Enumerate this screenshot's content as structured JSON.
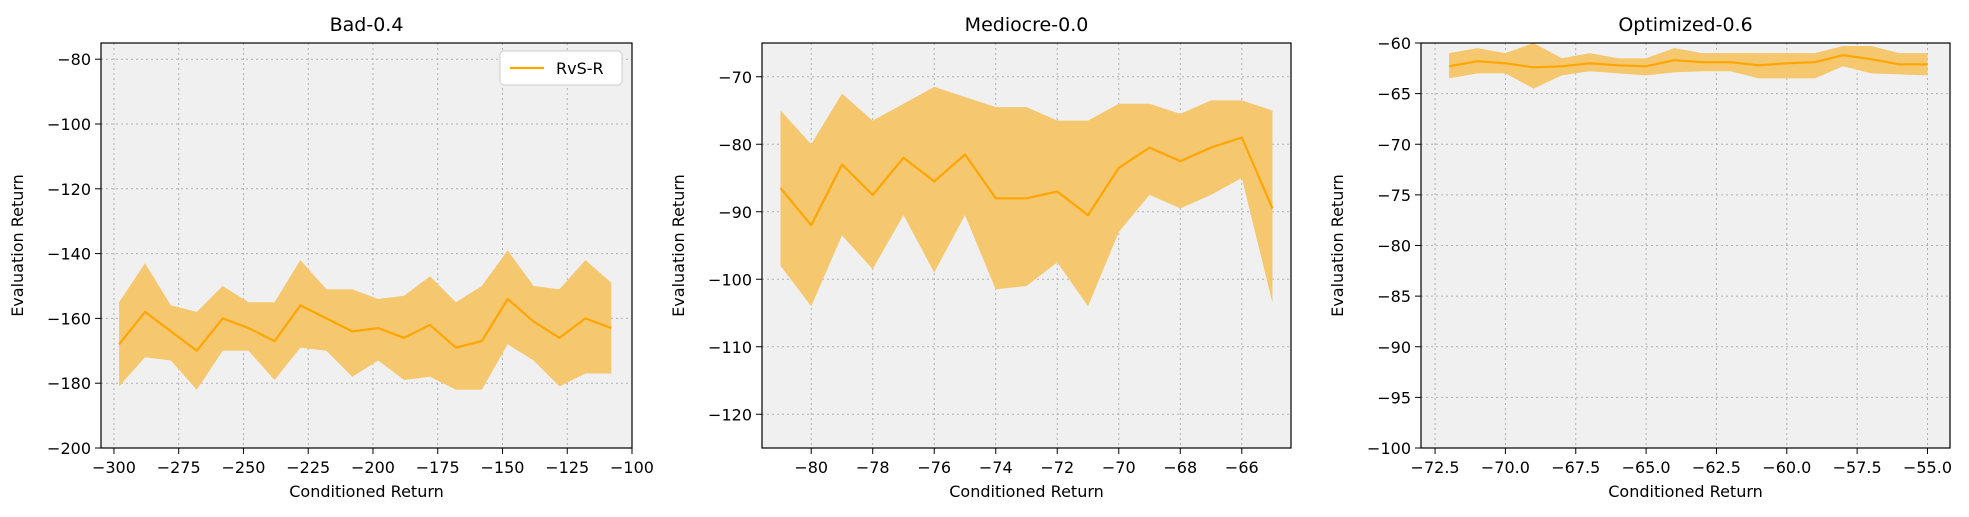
{
  "colors": {
    "line": "#ffa500",
    "band": "#f5c76f",
    "plot_bg": "#f0f0f0",
    "grid": "#b0b0b0"
  },
  "chart_data": [
    {
      "type": "line",
      "title": "Bad-0.4",
      "xlabel": "Conditioned Return",
      "ylabel": "Evaluation Return",
      "xlim": [
        -305,
        -100
      ],
      "ylim": [
        -200,
        -75
      ],
      "xticks": [
        -300,
        -275,
        -250,
        -225,
        -200,
        -175,
        -150,
        -125,
        -100
      ],
      "yticks": [
        -200,
        -180,
        -160,
        -140,
        -120,
        -100,
        -80
      ],
      "grid": true,
      "legend": {
        "position": "top-right",
        "entries": [
          "RvS-R"
        ]
      },
      "series": [
        {
          "name": "RvS-R",
          "x": [
            -298,
            -288,
            -278,
            -268,
            -258,
            -248,
            -238,
            -228,
            -218,
            -208,
            -198,
            -188,
            -178,
            -168,
            -158,
            -148,
            -138,
            -128,
            -118,
            -108
          ],
          "y": [
            -168,
            -158,
            -164,
            -170,
            -160,
            -163,
            -167,
            -156,
            -160,
            -164,
            -163,
            -166,
            -162,
            -169,
            -167,
            -154,
            -161,
            -166,
            -160,
            -163
          ],
          "upper": [
            -155,
            -143,
            -156,
            -158,
            -150,
            -155,
            -155,
            -142,
            -151,
            -151,
            -154,
            -153,
            -147,
            -155,
            -150,
            -139,
            -150,
            -151,
            -142,
            -149
          ],
          "lower": [
            -181,
            -172,
            -173,
            -182,
            -170,
            -170,
            -179,
            -169,
            -170,
            -178,
            -173,
            -179,
            -178,
            -182,
            -182,
            -168,
            -173,
            -181,
            -177,
            -177
          ]
        }
      ]
    },
    {
      "type": "line",
      "title": "Mediocre-0.0",
      "xlabel": "Conditioned Return",
      "ylabel": "Evaluation Return",
      "xlim": [
        -81.6,
        -64.4
      ],
      "ylim": [
        -125,
        -65
      ],
      "xticks": [
        -80,
        -78,
        -76,
        -74,
        -72,
        -70,
        -68,
        -66
      ],
      "yticks": [
        -120,
        -110,
        -100,
        -90,
        -80,
        -70
      ],
      "grid": true,
      "series": [
        {
          "name": "RvS-R",
          "x": [
            -81,
            -80,
            -79,
            -78,
            -77,
            -76,
            -75,
            -74,
            -73,
            -72,
            -71,
            -70,
            -69,
            -68,
            -67,
            -66,
            -65
          ],
          "y": [
            -86.5,
            -92,
            -83,
            -87.5,
            -82,
            -85.5,
            -81.5,
            -88,
            -88,
            -87,
            -90.5,
            -83.5,
            -80.5,
            -82.5,
            -80.5,
            -79,
            -89.5
          ],
          "upper": [
            -75,
            -80,
            -72.5,
            -76.5,
            -74,
            -71.5,
            -73,
            -74.5,
            -74.5,
            -76.5,
            -76.5,
            -74,
            -74,
            -75.5,
            -73.5,
            -73.5,
            -75
          ],
          "lower": [
            -98,
            -104,
            -93.5,
            -98.5,
            -90.5,
            -99,
            -90.5,
            -101.5,
            -101,
            -97.5,
            -104,
            -93,
            -87.5,
            -89.5,
            -87.5,
            -85,
            -103.5
          ]
        }
      ]
    },
    {
      "type": "line",
      "title": "Optimized-0.6",
      "xlabel": "Conditioned Return",
      "ylabel": "Evaluation Return",
      "xlim": [
        -73,
        -54.2
      ],
      "ylim": [
        -100,
        -60
      ],
      "xticks": [
        -72.5,
        -70.0,
        -67.5,
        -65.0,
        -62.5,
        -60.0,
        -57.5,
        -55.0
      ],
      "yticks": [
        -100,
        -95,
        -90,
        -85,
        -80,
        -75,
        -70,
        -65,
        -60
      ],
      "grid": true,
      "series": [
        {
          "name": "RvS-R",
          "x": [
            -72,
            -71,
            -70,
            -69,
            -68,
            -67,
            -66,
            -65,
            -64,
            -63,
            -62,
            -61,
            -60,
            -59,
            -58,
            -57,
            -56,
            -55
          ],
          "y": [
            -62.3,
            -61.8,
            -62,
            -62.4,
            -62.3,
            -62,
            -62.2,
            -62.3,
            -61.7,
            -61.9,
            -61.9,
            -62.2,
            -62.0,
            -61.9,
            -61.2,
            -61.6,
            -62.1,
            -62.1
          ],
          "upper": [
            -61,
            -60.5,
            -61,
            -60,
            -61.5,
            -61,
            -61.5,
            -61.5,
            -60.5,
            -61,
            -61,
            -61,
            -61,
            -61,
            -60.3,
            -60.3,
            -61,
            -61
          ],
          "lower": [
            -63.5,
            -63,
            -63,
            -64.5,
            -63.2,
            -62.8,
            -63,
            -63.2,
            -62.9,
            -62.8,
            -62.8,
            -63.5,
            -63.5,
            -63.5,
            -62.3,
            -63,
            -63.1,
            -63.2
          ]
        }
      ]
    }
  ]
}
